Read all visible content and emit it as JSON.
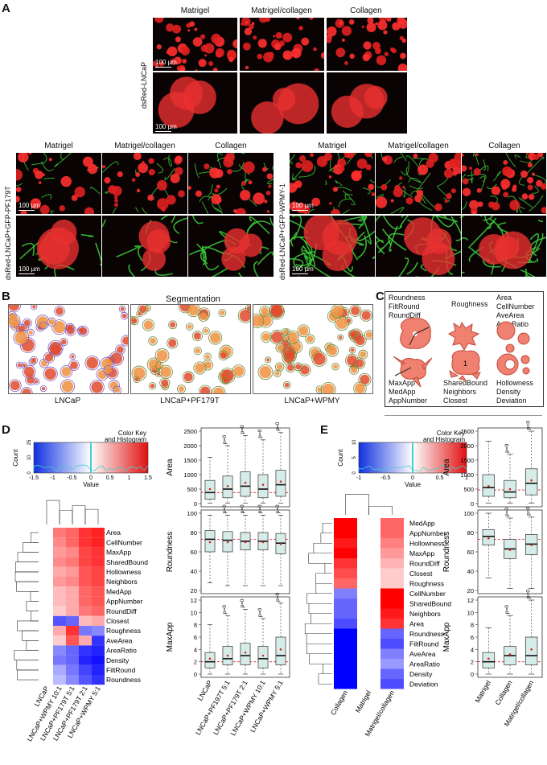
{
  "panels": {
    "A": "A",
    "B": "B",
    "C": "C",
    "D": "D",
    "E": "E"
  },
  "panelA": {
    "top_headers": [
      "Matrigel",
      "Matrigel/collagen",
      "Collagen"
    ],
    "top_row_label": "dsRed-LNCaP",
    "left_headers": [
      "Matrigel",
      "Matrigel/collagen",
      "Collagen"
    ],
    "left_row_label": "dsRed-LNCaP+GFP-PF179T",
    "right_headers": [
      "Matrigel",
      "Matrigel/collagen",
      "Collagen"
    ],
    "right_row_label": "dsRed-LNCaP+GFP-WPMY-1",
    "scale": "100 µm"
  },
  "panelB": {
    "title": "Segmentation",
    "labels": [
      "LNCaP",
      "LNCaP+PF179T",
      "LNCaP+WPMY"
    ]
  },
  "panelC": {
    "group1": [
      "Roundness",
      "FiltRound",
      "RoundDiff"
    ],
    "group2": [
      "Roughness"
    ],
    "group3": [
      "Area",
      "CellNumber",
      "AveArea",
      "AreaRatio"
    ],
    "group4": [
      "MaxApp",
      "MedApp",
      "AppNumber"
    ],
    "group5": [
      "SharedBound",
      "Neighbors",
      "Closest"
    ],
    "group6": [
      "Hollowness",
      "Density",
      "Deviation"
    ],
    "cell_number": "1"
  },
  "panelD": {
    "colorkey": {
      "title1": "Color Key",
      "title2": "and Histogram",
      "ylabel": "Count",
      "yticks": [
        "0",
        "10",
        "25"
      ],
      "xlabel": "Value",
      "xticks": [
        "-1.5",
        "-1",
        "-0.5",
        "0",
        "0.5",
        "1",
        "1.5"
      ]
    },
    "heatmap_rows": [
      "Area",
      "CellNumber",
      "MaxApp",
      "SharedBound",
      "Hollowness",
      "Neighbors",
      "MedApp",
      "AppNumber",
      "RoundDiff",
      "Closest",
      "Roughness",
      "AveArea",
      "AreaRatio",
      "Density",
      "FiltRound",
      "Roundness"
    ],
    "heatmap_cols": [
      "LNCaP",
      "LNCaP+WPMY 10:1",
      "LNCaP+PF179T 5:1",
      "LNCaP+PF179T 2:1",
      "LNCaP+WPMY 5:1"
    ],
    "box_categories": [
      "LNCaP",
      "LNCaP+PF197T 5:1",
      "LNCaP+PF179T 2:1",
      "LNCaP+WPMY 10:1",
      "LNCaP+WPMY 5:1"
    ],
    "pval": "p=0"
  },
  "panelE": {
    "colorkey": {
      "title1": "Color Key",
      "title2": "and Histogram",
      "ylabel": "Count",
      "yticks": [
        "0",
        "5",
        "10"
      ],
      "xlabel": "Value",
      "xticks": [
        "-1",
        "-0.5",
        "0",
        "0.5",
        "1"
      ]
    },
    "heatmap_rows": [
      "MedApp",
      "AppNumber",
      "Hollowness",
      "MaxApp",
      "RoundDiff",
      "Closest",
      "Roughness",
      "CellNumber",
      "SharedBound",
      "Neighbors",
      "Area",
      "Roundness",
      "FiltRound",
      "AveArea",
      "AreaRatio",
      "Density",
      "Deviation"
    ],
    "heatmap_cols": [
      "Collagen",
      "Matrigel",
      "Matrigel/collagen"
    ],
    "box_categories": [
      "Matrigel",
      "Collagen",
      "Matrigel/collagen"
    ],
    "pval": "p=0"
  },
  "chart_data": [
    {
      "type": "box",
      "panel": "D",
      "ylabel": "Area",
      "ylim": [
        0,
        2500
      ],
      "yticks": [
        0,
        500,
        1000,
        1500,
        2000,
        2500
      ],
      "categories": [
        "LNCaP",
        "LNCaP+PF197T 5:1",
        "LNCaP+PF179T 2:1",
        "LNCaP+WPMY 10:1",
        "LNCaP+WPMY 5:1"
      ],
      "boxes": [
        {
          "min": 20,
          "q1": 150,
          "median": 380,
          "q3": 800,
          "max": 1600,
          "mean": 500
        },
        {
          "min": 20,
          "q1": 200,
          "median": 500,
          "q3": 950,
          "max": 2000,
          "mean": 600
        },
        {
          "min": 20,
          "q1": 250,
          "median": 600,
          "q3": 1100,
          "max": 2350,
          "mean": 720
        },
        {
          "min": 20,
          "q1": 200,
          "median": 500,
          "q3": 1000,
          "max": 2200,
          "mean": 650
        },
        {
          "min": 20,
          "q1": 250,
          "median": 650,
          "q3": 1150,
          "max": 2450,
          "mean": 760
        }
      ],
      "refline": 380
    },
    {
      "type": "box",
      "panel": "D",
      "ylabel": "Roundness",
      "ylim": [
        20,
        100
      ],
      "yticks": [
        20,
        40,
        60,
        80,
        100
      ],
      "categories": [
        "LNCaP",
        "LNCaP+PF197T 5:1",
        "LNCaP+PF179T 2:1",
        "LNCaP+WPMY 10:1",
        "LNCaP+WPMY 5:1"
      ],
      "boxes": [
        {
          "min": 28,
          "q1": 60,
          "median": 73,
          "q3": 82,
          "max": 98,
          "mean": 70
        },
        {
          "min": 25,
          "q1": 60,
          "median": 72,
          "q3": 81,
          "max": 98,
          "mean": 70
        },
        {
          "min": 25,
          "q1": 62,
          "median": 71,
          "q3": 80,
          "max": 98,
          "mean": 70
        },
        {
          "min": 25,
          "q1": 62,
          "median": 71,
          "q3": 80,
          "max": 98,
          "mean": 70
        },
        {
          "min": 25,
          "q1": 58,
          "median": 69,
          "q3": 79,
          "max": 98,
          "mean": 68
        }
      ],
      "refline": 73
    },
    {
      "type": "box",
      "panel": "D",
      "ylabel": "MaxApp",
      "ylim": [
        0,
        12
      ],
      "yticks": [
        0,
        2,
        4,
        6,
        8,
        10,
        12
      ],
      "categories": [
        "LNCaP",
        "LNCaP+PF197T 5:1",
        "LNCaP+PF179T 2:1",
        "LNCaP+WPMY 10:1",
        "LNCaP+WPMY 5:1"
      ],
      "boxes": [
        {
          "min": 0,
          "q1": 1,
          "median": 2,
          "q3": 3.5,
          "max": 8,
          "mean": 2.5
        },
        {
          "min": 0,
          "q1": 1.5,
          "median": 2.5,
          "q3": 4.5,
          "max": 9.5,
          "mean": 3
        },
        {
          "min": 0,
          "q1": 1.5,
          "median": 3,
          "q3": 5,
          "max": 10.5,
          "mean": 3.5
        },
        {
          "min": 0,
          "q1": 1,
          "median": 2.5,
          "q3": 4.5,
          "max": 9,
          "mean": 3
        },
        {
          "min": 0,
          "q1": 1.5,
          "median": 3,
          "q3": 6,
          "max": 11.5,
          "mean": 4
        }
      ],
      "refline": 2
    },
    {
      "type": "box",
      "panel": "E",
      "ylabel": "Area",
      "ylim": [
        0,
        2500
      ],
      "yticks": [
        0,
        500,
        1000,
        1500,
        2000,
        2500
      ],
      "categories": [
        "Matrigel",
        "Collagen",
        "Matrigel/collagen"
      ],
      "boxes": [
        {
          "min": 20,
          "q1": 250,
          "median": 550,
          "q3": 1000,
          "max": 2150,
          "mean": 600
        },
        {
          "min": 20,
          "q1": 200,
          "median": 400,
          "q3": 800,
          "max": 1700,
          "mean": 500
        },
        {
          "min": 20,
          "q1": 300,
          "median": 700,
          "q3": 1200,
          "max": 2500,
          "mean": 800
        }
      ],
      "refline": 470
    },
    {
      "type": "box",
      "panel": "E",
      "ylabel": "Roundness",
      "ylim": [
        20,
        100
      ],
      "yticks": [
        20,
        40,
        60,
        80,
        100
      ],
      "categories": [
        "Matrigel",
        "Collagen",
        "Matrigel/collagen"
      ],
      "boxes": [
        {
          "min": 33,
          "q1": 67,
          "median": 76,
          "q3": 83,
          "max": 100,
          "mean": 74
        },
        {
          "min": 22,
          "q1": 53,
          "median": 63,
          "q3": 73,
          "max": 95,
          "mean": 62
        },
        {
          "min": 22,
          "q1": 57,
          "median": 68,
          "q3": 78,
          "max": 96,
          "mean": 67
        }
      ],
      "refline": 73
    },
    {
      "type": "box",
      "panel": "E",
      "ylabel": "MaxApp",
      "ylim": [
        0,
        12
      ],
      "yticks": [
        0,
        2,
        4,
        6,
        8,
        10,
        12
      ],
      "categories": [
        "Matrigel",
        "Collagen",
        "Matrigel/collagen"
      ],
      "boxes": [
        {
          "min": 0,
          "q1": 1,
          "median": 2,
          "q3": 3.5,
          "max": 7.5,
          "mean": 2.5
        },
        {
          "min": 0,
          "q1": 1.5,
          "median": 3,
          "q3": 4.5,
          "max": 9.5,
          "mean": 3.2
        },
        {
          "min": 0,
          "q1": 1.5,
          "median": 3,
          "q3": 6,
          "max": 12,
          "mean": 4
        }
      ],
      "refline": 2
    }
  ],
  "heatmapD_values": [
    [
      0.0,
      0.8,
      0.9,
      1.2,
      1.3
    ],
    [
      0.0,
      0.7,
      0.9,
      1.2,
      1.3
    ],
    [
      0.0,
      0.6,
      0.7,
      1.1,
      1.2
    ],
    [
      0.0,
      0.7,
      0.8,
      1.1,
      1.2
    ],
    [
      0.0,
      0.5,
      0.6,
      1.0,
      1.1
    ],
    [
      0.0,
      0.6,
      0.7,
      1.0,
      1.1
    ],
    [
      0.0,
      0.4,
      0.5,
      0.9,
      1.0
    ],
    [
      0.0,
      0.4,
      0.5,
      0.9,
      1.0
    ],
    [
      0.0,
      0.3,
      0.5,
      0.8,
      0.9
    ],
    [
      0.0,
      -1.0,
      -0.9,
      0.4,
      0.5
    ],
    [
      0.0,
      0.5,
      1.2,
      -0.8,
      -0.7
    ],
    [
      0.0,
      0.3,
      1.0,
      0.5,
      -1.2
    ],
    [
      0.0,
      -0.7,
      -0.9,
      -1.2,
      -1.3
    ],
    [
      0.0,
      -0.8,
      -0.9,
      -1.3,
      -1.4
    ],
    [
      0.0,
      -0.5,
      -0.8,
      -1.1,
      -1.3
    ],
    [
      0.0,
      -0.4,
      -0.7,
      -1.0,
      -1.2
    ]
  ],
  "heatmapE_values": [
    [
      1.0,
      0.0,
      0.6
    ],
    [
      1.0,
      0.0,
      0.6
    ],
    [
      0.9,
      0.0,
      0.5
    ],
    [
      1.0,
      0.0,
      0.4
    ],
    [
      0.8,
      0.0,
      0.3
    ],
    [
      0.7,
      0.0,
      0.2
    ],
    [
      0.6,
      0.0,
      0.2
    ],
    [
      -0.5,
      0.0,
      1.0
    ],
    [
      -0.6,
      0.0,
      1.0
    ],
    [
      -0.6,
      0.0,
      0.9
    ],
    [
      -0.7,
      0.0,
      0.8
    ],
    [
      -1.0,
      0.0,
      -0.6
    ],
    [
      -1.0,
      0.0,
      -0.7
    ],
    [
      -1.0,
      0.0,
      -0.5
    ],
    [
      -1.0,
      0.0,
      -0.4
    ],
    [
      -1.0,
      0.0,
      -0.6
    ],
    [
      -1.0,
      0.0,
      -0.7
    ]
  ]
}
